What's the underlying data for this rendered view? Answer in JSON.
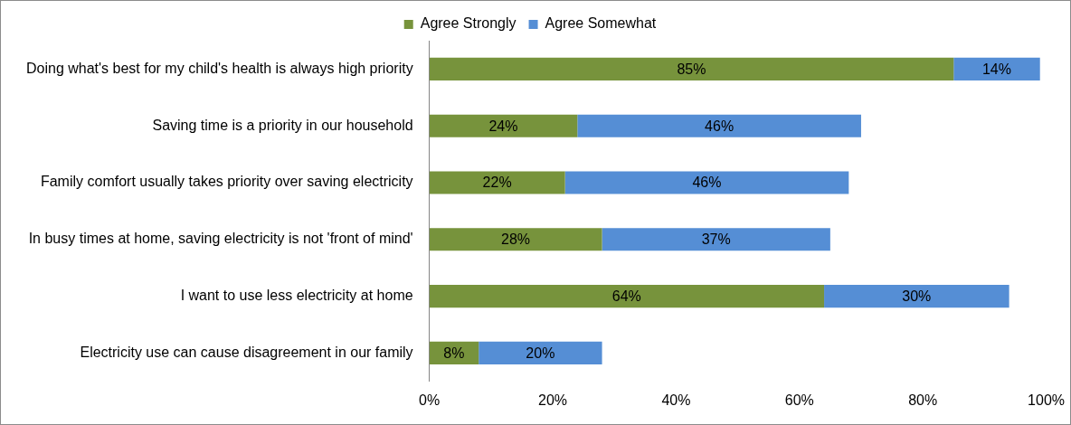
{
  "chart_data": {
    "type": "bar",
    "orientation": "horizontal",
    "stacked": true,
    "legend": "top",
    "grid": false,
    "categories": [
      "Doing what's best for my child's health is always high priority",
      "Saving time is a priority in our household",
      "Family comfort usually takes priority over saving electricity",
      "In busy times at home, saving electricity is not 'front of mind'",
      "I want to use less electricity at home",
      "Electricity use can cause disagreement in our family"
    ],
    "series": [
      {
        "name": "Agree Strongly",
        "color": "#77933c",
        "values": [
          85,
          24,
          22,
          28,
          64,
          8
        ],
        "value_labels": [
          "85%",
          "24%",
          "22%",
          "28%",
          "64%",
          "8%"
        ]
      },
      {
        "name": "Agree Somewhat",
        "color": "#558ed5",
        "values": [
          14,
          46,
          46,
          37,
          30,
          20
        ],
        "value_labels": [
          "14%",
          "46%",
          "46%",
          "37%",
          "30%",
          "20%"
        ]
      }
    ],
    "xlim": [
      0,
      100
    ],
    "xticks": [
      {
        "value": 0,
        "label": "0%"
      },
      {
        "value": 20,
        "label": "20%"
      },
      {
        "value": 40,
        "label": "40%"
      },
      {
        "value": 60,
        "label": "60%"
      },
      {
        "value": 80,
        "label": "80%"
      },
      {
        "value": 100,
        "label": "100%"
      }
    ]
  }
}
